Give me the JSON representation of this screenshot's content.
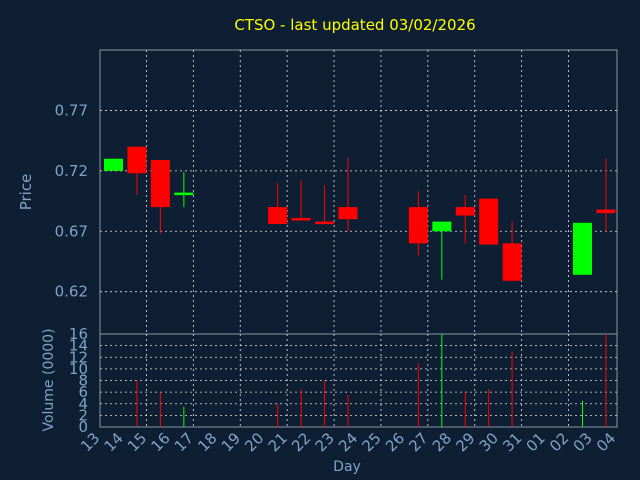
{
  "chart_data": {
    "type": "candlestick",
    "title": "CTSO - last updated 03/02/2026",
    "xlabel": "Day",
    "ylabel_price": "Price",
    "ylabel_volume": "Volume (0000)",
    "price_ylim": [
      0.585,
      0.82
    ],
    "price_yticks": [
      "0.77",
      "0.72",
      "0.67",
      "0.62"
    ],
    "price_ytick_values": [
      0.77,
      0.72,
      0.67,
      0.62
    ],
    "volume_ylim": [
      0,
      16
    ],
    "volume_yticks": [
      "0",
      "2",
      "4",
      "6",
      "8",
      "10",
      "12",
      "14",
      "16"
    ],
    "x_labels": [
      "13",
      "14",
      "15",
      "16",
      "17",
      "18",
      "19",
      "20",
      "21",
      "22",
      "23",
      "24",
      "25",
      "26",
      "27",
      "28",
      "29",
      "30",
      "31",
      "01",
      "02",
      "03",
      "04"
    ],
    "grid": true,
    "colors": {
      "background": "#0f1f33",
      "up": "#00ff00",
      "down": "#ff0000",
      "grid": "#e0e0e0",
      "axis_text": "#7fa3c7",
      "title": "#ffff00"
    },
    "candles": [
      {
        "day": "13",
        "open": 0.72,
        "close": 0.73,
        "high": 0.73,
        "low": 0.72,
        "volume": 0
      },
      {
        "day": "14",
        "open": 0.74,
        "close": 0.718,
        "high": 0.74,
        "low": 0.7,
        "volume": 8
      },
      {
        "day": "15",
        "open": 0.729,
        "close": 0.69,
        "high": 0.729,
        "low": 0.668,
        "volume": 6
      },
      {
        "day": "16",
        "open": 0.7,
        "close": 0.702,
        "high": 0.719,
        "low": 0.69,
        "volume": 3.5
      },
      {
        "day": "20",
        "open": 0.69,
        "close": 0.676,
        "high": 0.71,
        "low": 0.676,
        "volume": 4
      },
      {
        "day": "21",
        "open": 0.681,
        "close": 0.679,
        "high": 0.712,
        "low": 0.679,
        "volume": 6.5
      },
      {
        "day": "22",
        "open": 0.678,
        "close": 0.676,
        "high": 0.708,
        "low": 0.676,
        "volume": 8
      },
      {
        "day": "23",
        "open": 0.69,
        "close": 0.68,
        "high": 0.731,
        "low": 0.67,
        "volume": 5.5
      },
      {
        "day": "26",
        "open": 0.69,
        "close": 0.66,
        "high": 0.703,
        "low": 0.65,
        "volume": 11
      },
      {
        "day": "27",
        "open": 0.67,
        "close": 0.678,
        "high": 0.678,
        "low": 0.63,
        "volume": 16
      },
      {
        "day": "28",
        "open": 0.69,
        "close": 0.683,
        "high": 0.7,
        "low": 0.66,
        "volume": 6
      },
      {
        "day": "29",
        "open": 0.697,
        "close": 0.659,
        "high": 0.697,
        "low": 0.659,
        "volume": 6.5
      },
      {
        "day": "30",
        "open": 0.66,
        "close": 0.629,
        "high": 0.678,
        "low": 0.629,
        "volume": 13
      },
      {
        "day": "02",
        "open": 0.634,
        "close": 0.677,
        "high": 0.677,
        "low": 0.634,
        "volume": 4.5
      },
      {
        "day": "03",
        "open": 0.688,
        "close": 0.685,
        "high": 0.73,
        "low": 0.67,
        "volume": 16
      }
    ]
  }
}
